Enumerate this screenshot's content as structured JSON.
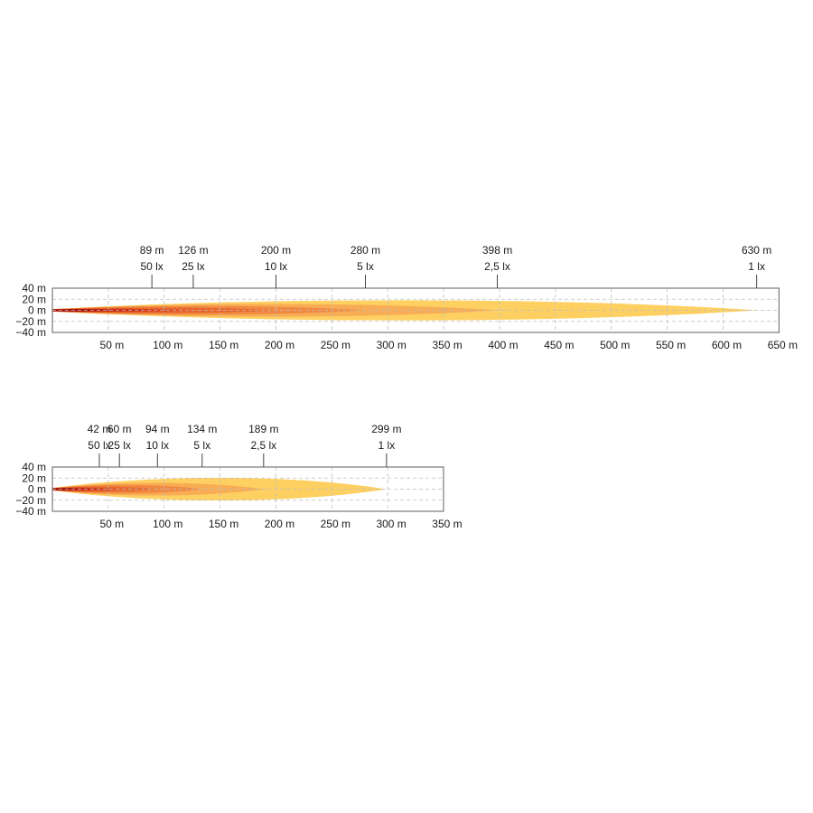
{
  "chart_data": [
    {
      "type": "area",
      "chart_kind": "beam-pattern",
      "x_unit": "m",
      "y_unit": "m",
      "xlim": [
        0,
        650
      ],
      "ylim": [
        -40,
        40
      ],
      "x_ticks": [
        50,
        100,
        150,
        200,
        250,
        300,
        350,
        400,
        450,
        500,
        550,
        600,
        650
      ],
      "x_tick_labels": [
        "50 m",
        "100 m",
        "150 m",
        "200 m",
        "250 m",
        "300 m",
        "350 m",
        "400 m",
        "450 m",
        "500 m",
        "550 m",
        "600 m",
        "650 m"
      ],
      "y_ticks": [
        40,
        20,
        0,
        -20,
        -40
      ],
      "y_tick_labels": [
        "40 m",
        "20 m",
        "0 m",
        "−20 m",
        "−40 m"
      ],
      "grid": true,
      "isolux": [
        {
          "distance": 630,
          "distance_label": "630 m",
          "lux_label": "1 lx",
          "half_width": 24,
          "color": "#fed062"
        },
        {
          "distance": 398,
          "distance_label": "398 m",
          "lux_label": "2,5 lx",
          "half_width": 15,
          "color": "#f8ad55"
        },
        {
          "distance": 280,
          "distance_label": "280 m",
          "lux_label": "5 lx",
          "half_width": 10,
          "color": "#f18a40"
        },
        {
          "distance": 200,
          "distance_label": "200 m",
          "lux_label": "10 lx",
          "half_width": 6.5,
          "color": "#e8682d"
        },
        {
          "distance": 126,
          "distance_label": "126 m",
          "lux_label": "25 lx",
          "half_width": 3.5,
          "color": "#d9401c"
        },
        {
          "distance": 89,
          "distance_label": "89 m",
          "lux_label": "50 lx",
          "half_width": 2,
          "color": "#bf1f0f"
        }
      ]
    },
    {
      "type": "area",
      "chart_kind": "beam-pattern",
      "x_unit": "m",
      "y_unit": "m",
      "xlim": [
        0,
        350
      ],
      "ylim": [
        -40,
        40
      ],
      "x_ticks": [
        50,
        100,
        150,
        200,
        250,
        300,
        350
      ],
      "x_tick_labels": [
        "50 m",
        "100 m",
        "150 m",
        "200 m",
        "250 m",
        "300 m",
        "350 m"
      ],
      "y_ticks": [
        40,
        20,
        0,
        -20,
        -40
      ],
      "y_tick_labels": [
        "40 m",
        "20 m",
        "0 m",
        "−20 m",
        "−40 m"
      ],
      "grid": true,
      "isolux": [
        {
          "distance": 299,
          "distance_label": "299 m",
          "lux_label": "1 lx",
          "half_width": 27,
          "color": "#fed062"
        },
        {
          "distance": 189,
          "distance_label": "189 m",
          "lux_label": "2,5 lx",
          "half_width": 15,
          "color": "#f8ad55"
        },
        {
          "distance": 134,
          "distance_label": "134 m",
          "lux_label": "5 lx",
          "half_width": 10,
          "color": "#f18a40"
        },
        {
          "distance": 94,
          "distance_label": "94 m",
          "lux_label": "10 lx",
          "half_width": 6,
          "color": "#e8682d"
        },
        {
          "distance": 60,
          "distance_label": "60 m",
          "lux_label": "25 lx",
          "half_width": 3.5,
          "color": "#d9401c"
        },
        {
          "distance": 42,
          "distance_label": "42 m",
          "lux_label": "50 lx",
          "half_width": 2,
          "color": "#bf1f0f"
        }
      ]
    }
  ]
}
